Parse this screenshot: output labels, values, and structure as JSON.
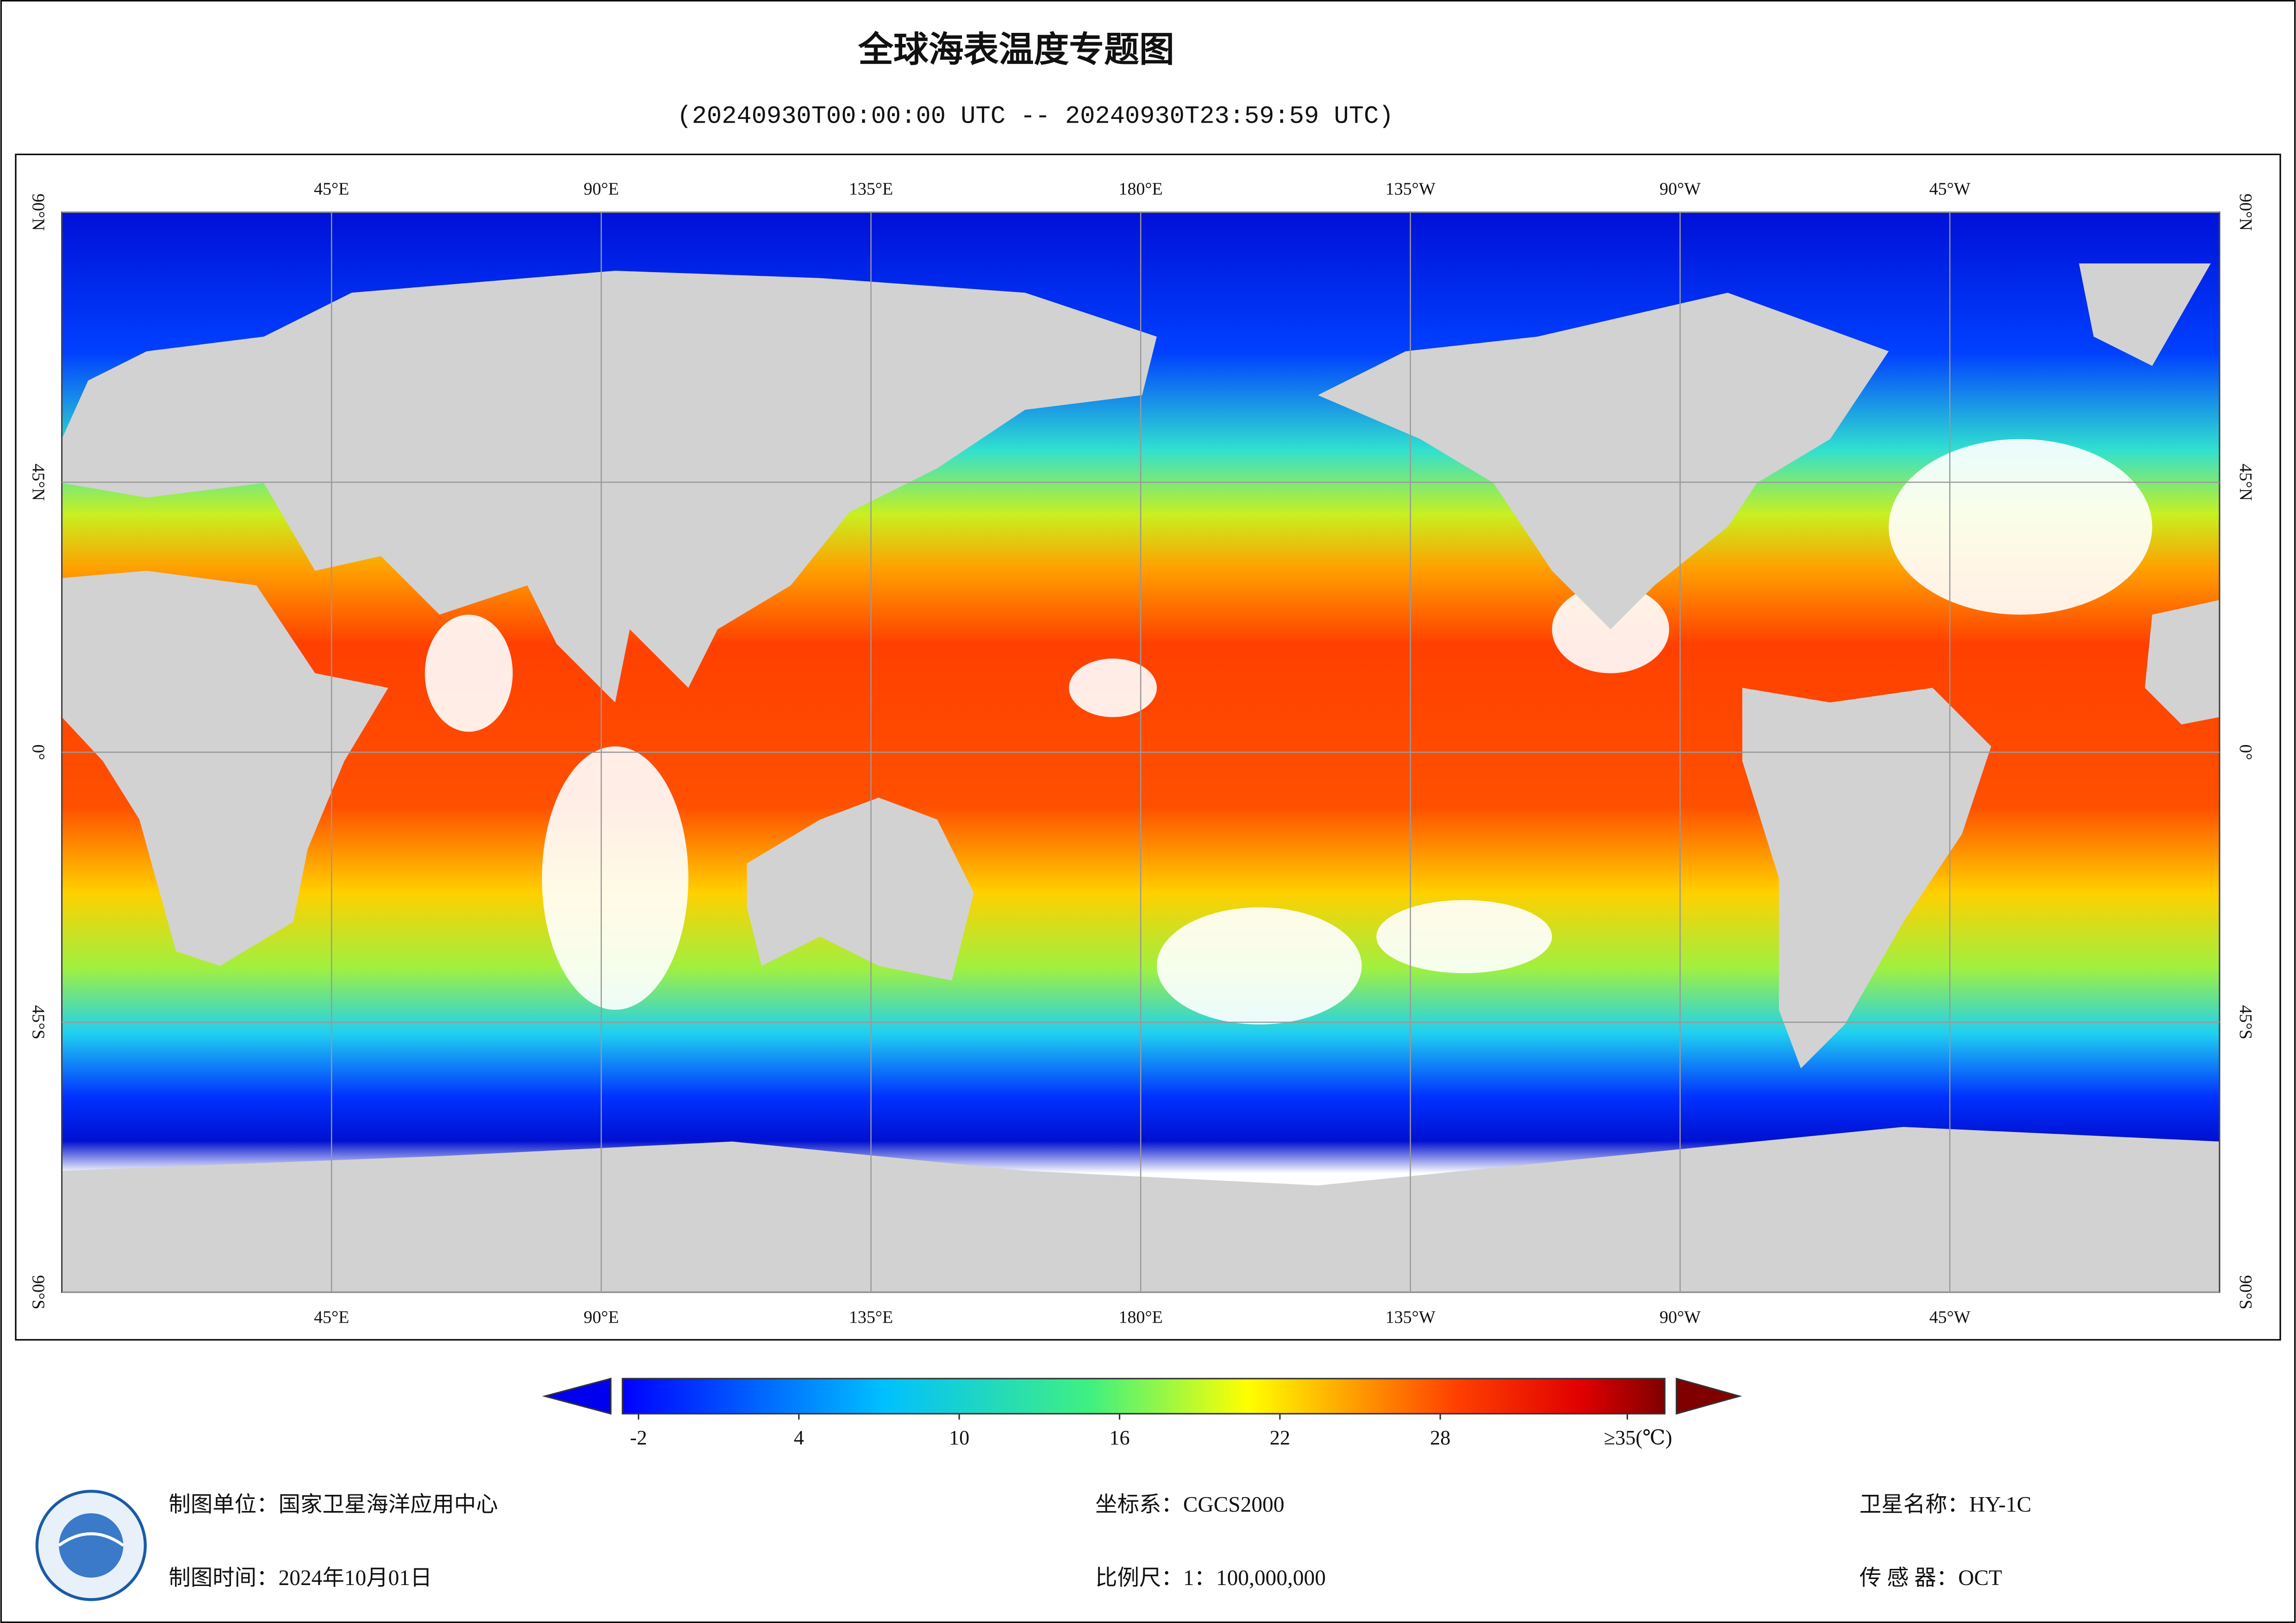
{
  "header": {
    "title": "全球海表温度专题图",
    "subtitle": "(20240930T00:00:00 UTC -- 20240930T23:59:59 UTC)"
  },
  "map": {
    "lonlim": [
      0,
      360
    ],
    "latlim": [
      -90,
      90
    ],
    "lon_ticks": [
      {
        "value": 45,
        "label": "45°E"
      },
      {
        "value": 90,
        "label": "90°E"
      },
      {
        "value": 135,
        "label": "135°E"
      },
      {
        "value": 180,
        "label": "180°E"
      },
      {
        "value": 225,
        "label": "135°W"
      },
      {
        "value": 270,
        "label": "90°W"
      },
      {
        "value": 315,
        "label": "45°W"
      }
    ],
    "lat_ticks": [
      {
        "value": 90,
        "label": "90°N"
      },
      {
        "value": 45,
        "label": "45°N"
      },
      {
        "value": 0,
        "label": "0°"
      },
      {
        "value": -45,
        "label": "45°S"
      },
      {
        "value": -90,
        "label": "90°S"
      }
    ]
  },
  "colorbar": {
    "range": [
      -2.6,
      36.4
    ],
    "ticks": [
      -2,
      4,
      10,
      16,
      22,
      28,
      {
        "value": 35,
        "label": "≥35(℃)"
      }
    ]
  },
  "footer": {
    "unit": "制图单位：国家卫星海洋应用中心",
    "time": "制图时间：2024年10月01日",
    "crs": "坐标系：CGCS2000",
    "scale": "比例尺：1：100,000,000",
    "satellite": "卫星名称：HY-1C",
    "sensor": "传 感 器：OCT"
  }
}
